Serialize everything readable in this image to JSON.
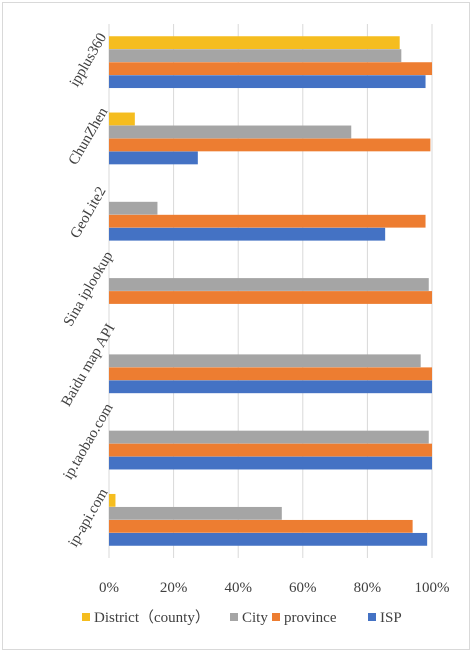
{
  "chart_data": {
    "type": "bar",
    "orientation": "horizontal",
    "title": "",
    "xlabel": "",
    "ylabel": "",
    "xlim": [
      0,
      100
    ],
    "x_ticks": [
      "0%",
      "20%",
      "40%",
      "60%",
      "80%",
      "100%"
    ],
    "grid": true,
    "legend_position": "bottom",
    "categories": [
      "ipplus360",
      "ChunZhen",
      "GeoLite2",
      "Sina iplookup",
      "Baidu map API",
      "ip.taobao.com",
      "ip-api.com"
    ],
    "series": [
      {
        "name": "District（county）",
        "color": "#f5bd1f",
        "values": [
          90,
          8,
          0,
          0,
          0,
          0,
          2
        ]
      },
      {
        "name": "City",
        "color": "#a5a5a5",
        "values": [
          90.5,
          75,
          15,
          99,
          96.5,
          99,
          53.5
        ]
      },
      {
        "name": "province",
        "color": "#ed7d31",
        "values": [
          100,
          99.5,
          98,
          100,
          100,
          100,
          94
        ]
      },
      {
        "name": "ISP",
        "color": "#4472c4",
        "values": [
          98,
          27.5,
          85.5,
          0,
          100,
          100,
          98.5
        ]
      }
    ]
  }
}
